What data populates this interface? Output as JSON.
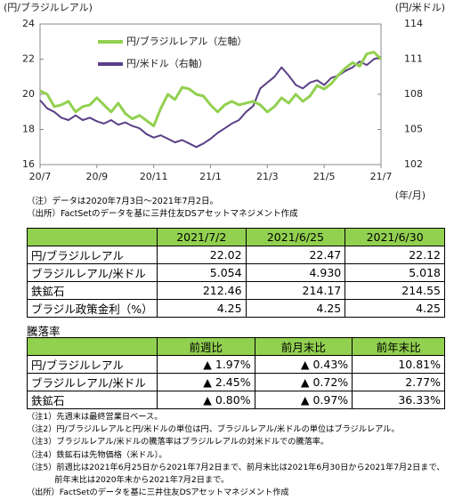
{
  "chart_data": {
    "type": "line",
    "y_label": "(円/ブラジルレアル)",
    "y2_label": "(円/米ドル)",
    "x_label": "(年/月)",
    "x": [
      0,
      0.25,
      0.5,
      0.75,
      1,
      1.25,
      1.5,
      1.75,
      2,
      2.25,
      2.5,
      2.75,
      3,
      3.25,
      3.5,
      3.75,
      4,
      4.25,
      4.5,
      4.75,
      5,
      5.25,
      5.5,
      5.75,
      6,
      6.25,
      6.5,
      6.75,
      7,
      7.25,
      7.5,
      7.75,
      8,
      8.25,
      8.5,
      8.75,
      9,
      9.25,
      9.5,
      9.75,
      10,
      10.25,
      10.5,
      10.75,
      11,
      11.25,
      11.5,
      11.75,
      12
    ],
    "xlim": [
      0,
      12
    ],
    "xticks": [
      {
        "value": 0,
        "label": "20/7"
      },
      {
        "value": 2,
        "label": "20/9"
      },
      {
        "value": 4,
        "label": "20/11"
      },
      {
        "value": 6,
        "label": "21/1"
      },
      {
        "value": 8,
        "label": "21/3"
      },
      {
        "value": 10,
        "label": "21/5"
      },
      {
        "value": 12,
        "label": "21/7"
      }
    ],
    "ylim": [
      16,
      24
    ],
    "yticks": [
      16,
      18,
      20,
      22,
      24
    ],
    "y2lim": [
      102,
      114
    ],
    "y2ticks": [
      102,
      105,
      108,
      111,
      114
    ],
    "legend": "upper left",
    "series": [
      {
        "name": "円/ブラジルレアル（左軸）",
        "color": "#92d050",
        "axis": "y",
        "values": [
          20.2,
          20.0,
          19.3,
          19.4,
          19.6,
          19.0,
          19.3,
          19.4,
          19.8,
          19.4,
          19.0,
          19.5,
          18.9,
          18.6,
          18.8,
          18.5,
          18.2,
          19.2,
          20.0,
          19.7,
          20.4,
          20.3,
          20.0,
          19.9,
          19.4,
          19.0,
          19.4,
          19.6,
          19.4,
          19.5,
          19.6,
          19.4,
          19.0,
          19.3,
          19.8,
          19.5,
          20.0,
          19.6,
          19.9,
          20.5,
          20.3,
          20.6,
          21.1,
          21.5,
          21.8,
          21.6,
          22.3,
          22.4,
          22.0
        ]
      },
      {
        "name": "円/米ドル（右軸）",
        "color": "#5b3f86",
        "axis": "y2",
        "values": [
          107.5,
          106.8,
          106.5,
          106.0,
          105.8,
          106.2,
          105.8,
          106.0,
          105.7,
          105.5,
          105.8,
          105.4,
          105.6,
          105.3,
          105.1,
          104.6,
          104.3,
          104.5,
          104.2,
          103.9,
          104.1,
          103.8,
          103.5,
          103.8,
          104.2,
          104.7,
          105.1,
          105.5,
          105.8,
          106.5,
          107.0,
          108.5,
          109.0,
          109.5,
          110.3,
          109.6,
          108.8,
          108.5,
          109.0,
          109.2,
          108.8,
          109.4,
          109.6,
          110.0,
          110.3,
          110.8,
          110.5,
          111.0,
          111.2
        ]
      }
    ]
  },
  "chart_notes": [
    "（注）データは2020年7月3日～2021年7月2日。",
    "（出所）FactSetのデータを基に三井住友DSアセットマネジメント作成"
  ],
  "table1": {
    "header": [
      "2021/7/2",
      "2021/6/25",
      "2021/6/30"
    ],
    "rows": [
      {
        "label": "円/ブラジルレアル",
        "cells": [
          "22.02",
          "22.47",
          "22.12"
        ]
      },
      {
        "label": "ブラジルレアル/米ドル",
        "cells": [
          "5.054",
          "4.930",
          "5.018"
        ]
      },
      {
        "label": "鉄鉱石",
        "cells": [
          "212.46",
          "214.17",
          "214.55"
        ]
      },
      {
        "label": "ブラジル政策金利（%）",
        "cells": [
          "4.25",
          "4.25",
          "4.25"
        ]
      }
    ]
  },
  "section_label": "騰落率",
  "table2": {
    "header": [
      "前週比",
      "前月末比",
      "前年末比"
    ],
    "rows": [
      {
        "label": "円/ブラジルレアル",
        "cells": [
          "▲ 1.97%",
          "▲ 0.43%",
          "10.81%"
        ]
      },
      {
        "label": "ブラジルレアル/米ドル",
        "cells": [
          "▲ 2.45%",
          "▲ 0.72%",
          "2.77%"
        ]
      },
      {
        "label": "鉄鉱石",
        "cells": [
          "▲ 0.80%",
          "▲ 0.97%",
          "36.33%"
        ]
      }
    ]
  },
  "notes": [
    "（注1）先週末は最終営業日ベース。",
    "（注2）円/ブラジルレアルと円/米ドルの単位は円、ブラジルレアル/米ドルの単位はブラジルレアル。",
    "（注3）ブラジルレアル/米ドルの騰落率はブラジルレアルの対米ドルでの騰落率。",
    "（注4）鉄鉱石は先物価格（米ドル）。",
    "（注5）前週比は2021年6月25日から2021年7月2日まで、前月末比は2021年6月30日から2021年7月2日まで、前年末比は2020年末から2021年7月2日まで。",
    "（出所）FactSetのデータを基に三井住友DSアセットマネジメント作成"
  ]
}
